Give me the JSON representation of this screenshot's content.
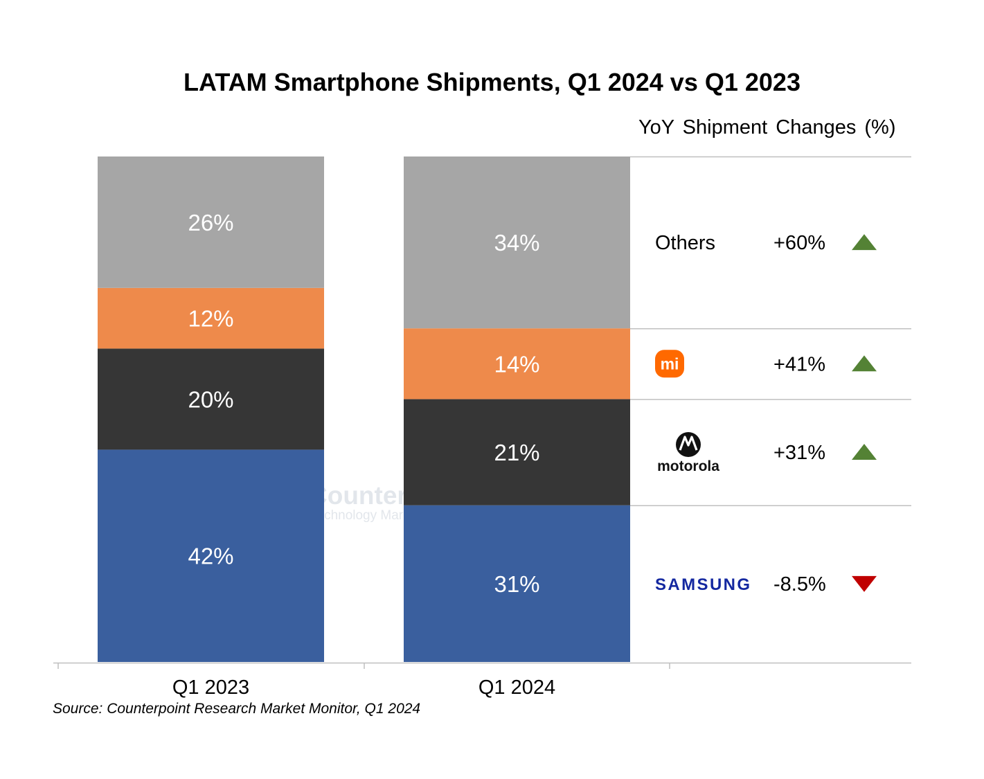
{
  "title": "LATAM Smartphone Shipments, Q1 2024 vs Q1 2023",
  "yoy_heading": "YoY Shipment Changes (%)",
  "source": "Source: Counterpoint Research Market Monitor, Q1 2024",
  "watermark": {
    "name": "Counterpoint",
    "tagline": "Technology Market Research"
  },
  "chart_data": {
    "type": "bar",
    "stacked": true,
    "percent_stacked": true,
    "categories": [
      "Q1 2023",
      "Q1 2024"
    ],
    "series": [
      {
        "name": "Samsung",
        "values": [
          42,
          31
        ],
        "labels": [
          "42%",
          "31%"
        ],
        "color": "#3a5f9e"
      },
      {
        "name": "Motorola",
        "values": [
          20,
          21
        ],
        "labels": [
          "20%",
          "21%"
        ],
        "color": "#363636"
      },
      {
        "name": "Xiaomi",
        "values": [
          12,
          14
        ],
        "labels": [
          "12%",
          "14%"
        ],
        "color": "#ee8a4b"
      },
      {
        "name": "Others",
        "values": [
          26,
          34
        ],
        "labels": [
          "26%",
          "34%"
        ],
        "color": "#a6a6a6"
      }
    ],
    "ylim": [
      0,
      100
    ],
    "yoy_changes": [
      {
        "brand": "Others",
        "brand_display": "Others",
        "brand_icon": "text",
        "change": 60,
        "label": "+60%",
        "direction": "up"
      },
      {
        "brand": "Xiaomi",
        "brand_display": "mi",
        "brand_icon": "xiaomi-logo-icon",
        "change": 41,
        "label": "+41%",
        "direction": "up"
      },
      {
        "brand": "Motorola",
        "brand_display": "motorola",
        "brand_icon": "motorola-logo-icon",
        "change": 31,
        "label": "+31%",
        "direction": "up"
      },
      {
        "brand": "Samsung",
        "brand_display": "SAMSUNG",
        "brand_icon": "samsung-logo-icon",
        "change": -8.5,
        "label": "-8.5%",
        "direction": "down"
      }
    ],
    "colors": {
      "up": "#548235",
      "down": "#c00000",
      "xiaomi_brand": "#ff6900",
      "samsung_brand": "#1428a0"
    }
  }
}
